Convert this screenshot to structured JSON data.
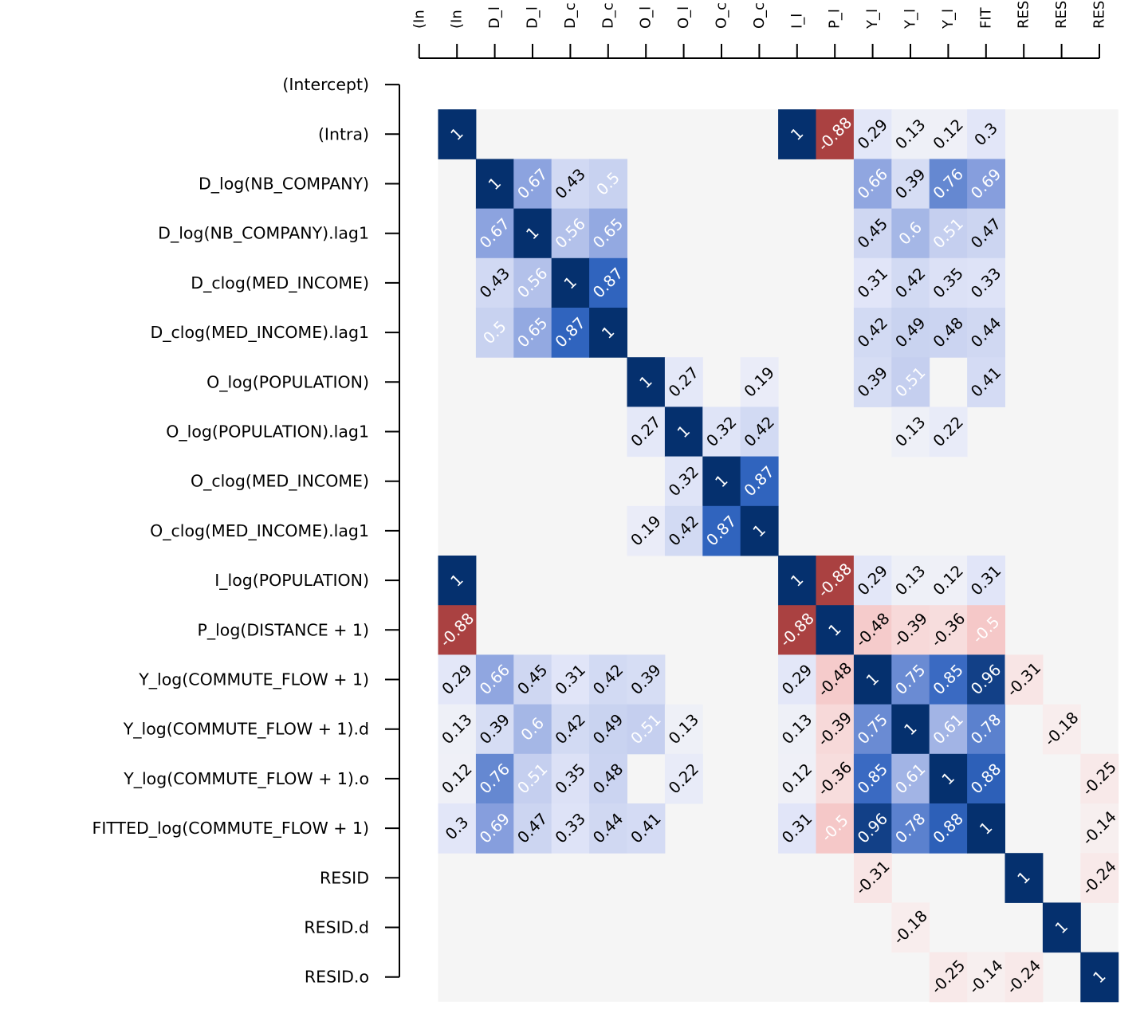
{
  "chart_data": {
    "type": "heatmap",
    "title": "",
    "xlabel": "",
    "ylabel": "",
    "value_range": [
      -1,
      1
    ],
    "legend": "none",
    "colors": {
      "negative": "#b2182b",
      "zero": "#f7f7f7",
      "positive": "#053061",
      "blank": "#f5f5f5"
    },
    "row_labels": [
      "(Intercept)",
      "(Intra)",
      "D_log(NB_COMPANY)",
      "D_log(NB_COMPANY).lag1",
      "D_clog(MED_INCOME)",
      "D_clog(MED_INCOME).lag1",
      "O_log(POPULATION)",
      "O_log(POPULATION).lag1",
      "O_clog(MED_INCOME)",
      "O_clog(MED_INCOME).lag1",
      "I_log(POPULATION)",
      "P_log(DISTANCE + 1)",
      "Y_log(COMMUTE_FLOW + 1)",
      "Y_log(COMMUTE_FLOW + 1).d",
      "Y_log(COMMUTE_FLOW + 1).o",
      "FITTED_log(COMMUTE_FLOW + 1)",
      "RESID",
      "RESID.d",
      "RESID.o"
    ],
    "col_labels": [
      "(In",
      "(In",
      "D_l",
      "D_l",
      "D_c",
      "D_c",
      "O_l",
      "O_l",
      "O_c",
      "O_c",
      "I_l",
      "P_l",
      "Y_l",
      "Y_l",
      "Y_l",
      "FIT",
      "RES",
      "RES",
      "RES"
    ],
    "matrix": [
      [
        null,
        null,
        null,
        null,
        null,
        null,
        null,
        null,
        null,
        null,
        null,
        null,
        null,
        null,
        null,
        null,
        null,
        null,
        null
      ],
      [
        null,
        1,
        null,
        null,
        null,
        null,
        null,
        null,
        null,
        null,
        1,
        -0.88,
        0.29,
        0.13,
        0.12,
        0.3,
        null,
        null,
        null
      ],
      [
        null,
        null,
        1,
        0.67,
        0.43,
        0.5,
        null,
        null,
        null,
        null,
        null,
        null,
        0.66,
        0.39,
        0.76,
        0.69,
        null,
        null,
        null
      ],
      [
        null,
        null,
        0.67,
        1,
        0.56,
        0.65,
        null,
        null,
        null,
        null,
        null,
        null,
        0.45,
        0.6,
        0.51,
        0.47,
        null,
        null,
        null
      ],
      [
        null,
        null,
        0.43,
        0.56,
        1,
        0.87,
        null,
        null,
        null,
        null,
        null,
        null,
        0.31,
        0.42,
        0.35,
        0.33,
        null,
        null,
        null
      ],
      [
        null,
        null,
        0.5,
        0.65,
        0.87,
        1,
        null,
        null,
        null,
        null,
        null,
        null,
        0.42,
        0.49,
        0.48,
        0.44,
        null,
        null,
        null
      ],
      [
        null,
        null,
        null,
        null,
        null,
        null,
        1,
        0.27,
        null,
        0.19,
        null,
        null,
        0.39,
        0.51,
        null,
        0.41,
        null,
        null,
        null
      ],
      [
        null,
        null,
        null,
        null,
        null,
        null,
        0.27,
        1,
        0.32,
        0.42,
        null,
        null,
        null,
        0.13,
        0.22,
        null,
        null,
        null,
        null
      ],
      [
        null,
        null,
        null,
        null,
        null,
        null,
        null,
        0.32,
        1,
        0.87,
        null,
        null,
        null,
        null,
        null,
        null,
        null,
        null,
        null
      ],
      [
        null,
        null,
        null,
        null,
        null,
        null,
        0.19,
        0.42,
        0.87,
        1,
        null,
        null,
        null,
        null,
        null,
        null,
        null,
        null,
        null
      ],
      [
        null,
        1,
        null,
        null,
        null,
        null,
        null,
        null,
        null,
        null,
        1,
        -0.88,
        0.29,
        0.13,
        0.12,
        0.31,
        null,
        null,
        null
      ],
      [
        null,
        -0.88,
        null,
        null,
        null,
        null,
        null,
        null,
        null,
        null,
        -0.88,
        1,
        -0.48,
        -0.39,
        -0.36,
        -0.5,
        null,
        null,
        null
      ],
      [
        null,
        0.29,
        0.66,
        0.45,
        0.31,
        0.42,
        0.39,
        null,
        null,
        null,
        0.29,
        -0.48,
        1,
        0.75,
        0.85,
        0.96,
        -0.31,
        null,
        null
      ],
      [
        null,
        0.13,
        0.39,
        0.6,
        0.42,
        0.49,
        0.51,
        0.13,
        null,
        null,
        0.13,
        -0.39,
        0.75,
        1,
        0.61,
        0.78,
        null,
        -0.18,
        null
      ],
      [
        null,
        0.12,
        0.76,
        0.51,
        0.35,
        0.48,
        null,
        0.22,
        null,
        null,
        0.12,
        -0.36,
        0.85,
        0.61,
        1,
        0.88,
        null,
        null,
        -0.25
      ],
      [
        null,
        0.3,
        0.69,
        0.47,
        0.33,
        0.44,
        0.41,
        null,
        null,
        null,
        0.31,
        -0.5,
        0.96,
        0.78,
        0.88,
        1,
        null,
        null,
        -0.14
      ],
      [
        null,
        null,
        null,
        null,
        null,
        null,
        null,
        null,
        null,
        null,
        null,
        null,
        -0.31,
        null,
        null,
        null,
        1,
        null,
        -0.24
      ],
      [
        null,
        null,
        null,
        null,
        null,
        null,
        null,
        null,
        null,
        null,
        null,
        null,
        null,
        -0.18,
        null,
        null,
        null,
        1,
        null
      ],
      [
        null,
        null,
        null,
        null,
        null,
        null,
        null,
        null,
        null,
        null,
        null,
        null,
        null,
        null,
        -0.25,
        -0.14,
        -0.24,
        null,
        1
      ]
    ]
  }
}
